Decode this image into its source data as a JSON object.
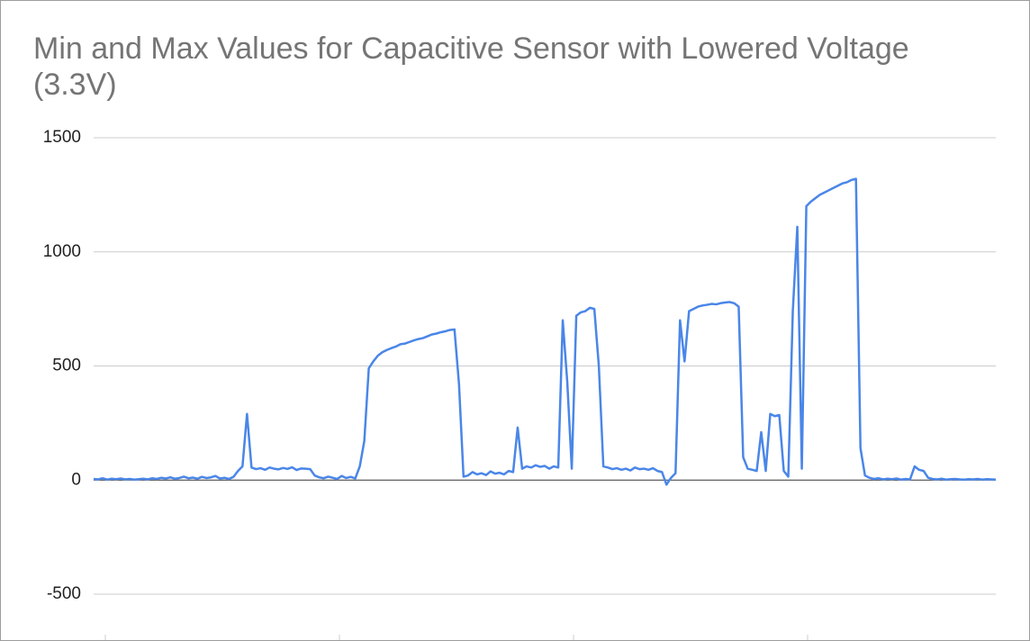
{
  "chart_data": {
    "type": "line",
    "title": "Min and Max Values for Capacitive Sensor with Lowered Voltage (3.3V)",
    "color": "#4a86e8",
    "ylim": [
      -500,
      1500
    ],
    "yticks": [
      -500,
      0,
      500,
      1000,
      1500
    ],
    "grid": true,
    "values": [
      5,
      3,
      8,
      2,
      6,
      4,
      7,
      3,
      5,
      2,
      4,
      6,
      3,
      8,
      5,
      10,
      7,
      12,
      6,
      9,
      15,
      8,
      11,
      6,
      14,
      9,
      12,
      18,
      7,
      10,
      5,
      14,
      40,
      60,
      290,
      55,
      48,
      52,
      45,
      55,
      50,
      47,
      53,
      49,
      56,
      44,
      51,
      50,
      48,
      20,
      12,
      8,
      15,
      10,
      5,
      18,
      9,
      14,
      7,
      60,
      170,
      490,
      520,
      545,
      560,
      570,
      578,
      585,
      595,
      598,
      605,
      612,
      618,
      622,
      630,
      638,
      642,
      648,
      652,
      658,
      660,
      420,
      15,
      20,
      35,
      25,
      30,
      22,
      38,
      28,
      32,
      25,
      40,
      35,
      230,
      50,
      60,
      55,
      65,
      58,
      62,
      50,
      60,
      55,
      700,
      430,
      50,
      720,
      735,
      740,
      755,
      750,
      500,
      60,
      55,
      48,
      52,
      45,
      50,
      42,
      55,
      48,
      50,
      45,
      52,
      40,
      35,
      -20,
      10,
      30,
      700,
      520,
      740,
      750,
      760,
      765,
      768,
      772,
      770,
      775,
      778,
      780,
      775,
      760,
      100,
      50,
      45,
      40,
      210,
      40,
      290,
      280,
      285,
      40,
      15,
      740,
      1110,
      50,
      1200,
      1220,
      1235,
      1250,
      1260,
      1270,
      1280,
      1290,
      1300,
      1305,
      1315,
      1320,
      140,
      20,
      10,
      5,
      8,
      3,
      6,
      4,
      7,
      2,
      5,
      3,
      60,
      45,
      40,
      10,
      5,
      3,
      6,
      2,
      4,
      5,
      3,
      2,
      4,
      3,
      5,
      2,
      4,
      3,
      2
    ]
  }
}
